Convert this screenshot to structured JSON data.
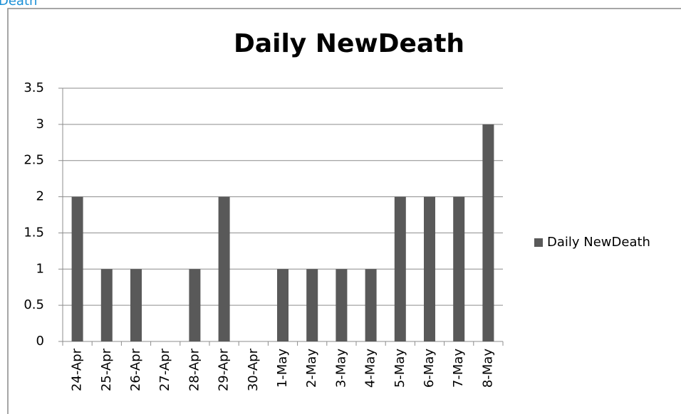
{
  "page_label": "Death",
  "chart_data": {
    "type": "bar",
    "title": "Daily NewDeath",
    "categories": [
      "24-Apr",
      "25-Apr",
      "26-Apr",
      "27-Apr",
      "28-Apr",
      "29-Apr",
      "30-Apr",
      "1-May",
      "2-May",
      "3-May",
      "4-May",
      "5-May",
      "6-May",
      "7-May",
      "8-May"
    ],
    "series": [
      {
        "name": "Daily NewDeath",
        "color": "#595959",
        "values": [
          2,
          1,
          1,
          0,
          1,
          2,
          0,
          1,
          1,
          1,
          1,
          2,
          2,
          2,
          3
        ]
      }
    ],
    "ylim": [
      0,
      3.5
    ],
    "yticks": [
      0,
      0.5,
      1,
      1.5,
      2,
      2.5,
      3,
      3.5
    ],
    "grid": true,
    "legend": "right"
  }
}
